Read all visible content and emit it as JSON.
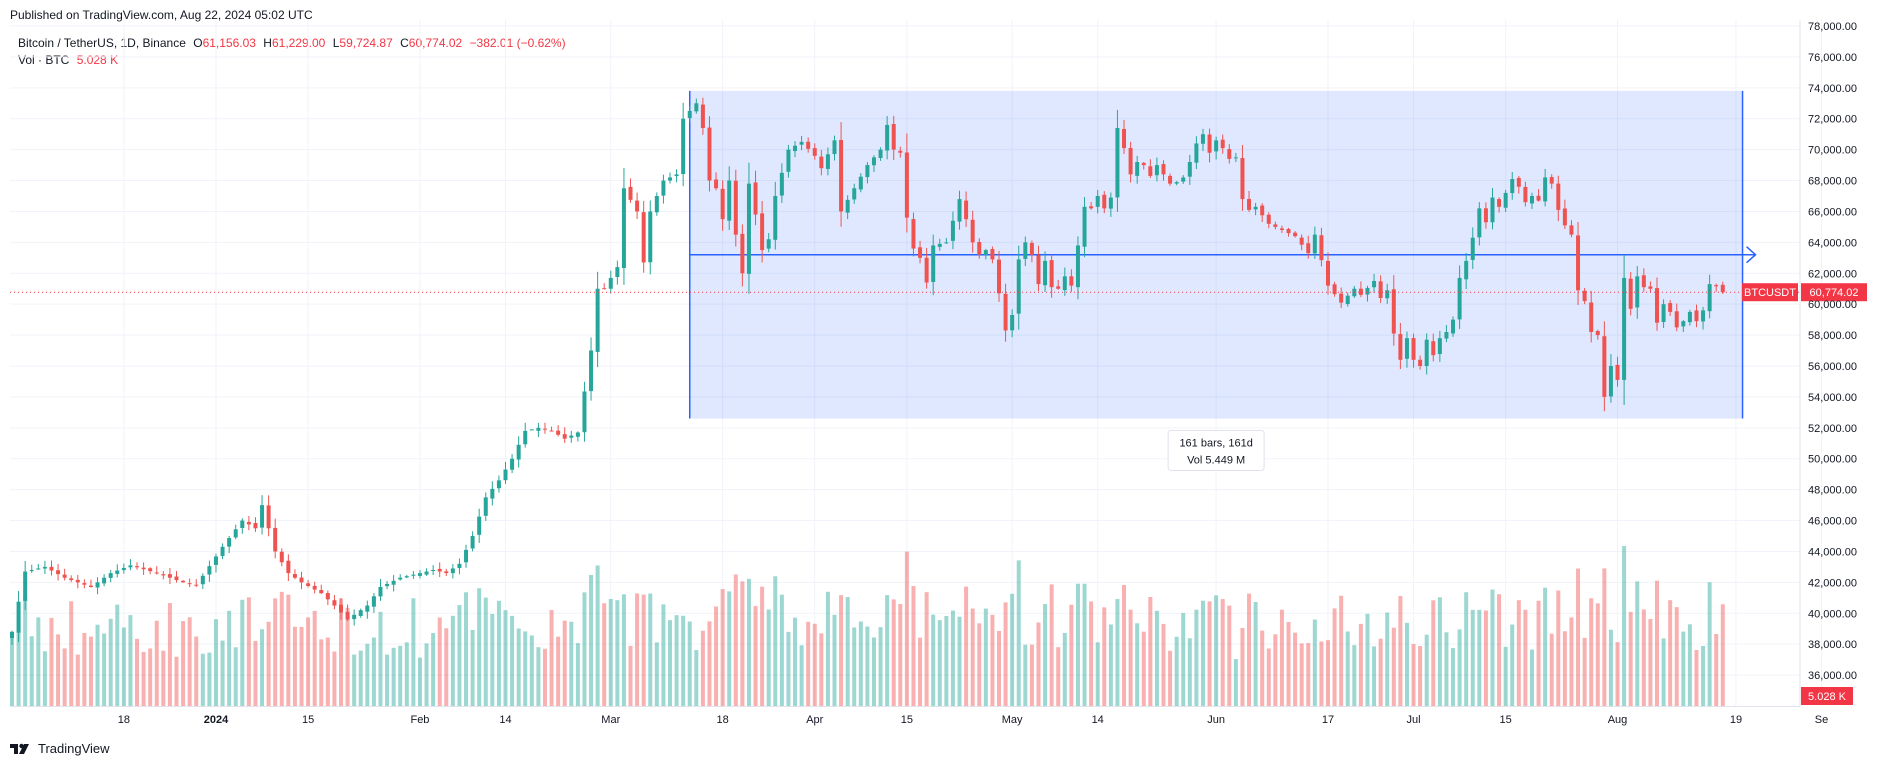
{
  "header": {
    "published": "Published on TradingView.com, Aug 22, 2024 05:02 UTC"
  },
  "legend": {
    "symbol": "Bitcoin / TetherUS, 1D, Binance",
    "open_label": "O",
    "open": "61,156.03",
    "high_label": "H",
    "high": "61,229.00",
    "low_label": "L",
    "low": "59,724.87",
    "close_label": "C",
    "close": "60,774.02",
    "change": "−382.01 (−0.62%)",
    "vol_label": "Vol · BTC",
    "vol_value": "5.028 K"
  },
  "footer": {
    "brand": "TradingView"
  },
  "colors": {
    "up": "#26a69a",
    "down": "#ef5350",
    "range": "#2962ff",
    "price_line": "#f23645"
  },
  "chart_data": {
    "type": "candlestick",
    "title": "Bitcoin / TetherUS, 1D, Binance",
    "ylim": [
      34000,
      78000
    ],
    "y_ticks": [
      "36,000.00",
      "38,000.00",
      "40,000.00",
      "42,000.00",
      "44,000.00",
      "46,000.00",
      "48,000.00",
      "50,000.00",
      "52,000.00",
      "54,000.00",
      "56,000.00",
      "58,000.00",
      "60,000.00",
      "62,000.00",
      "64,000.00",
      "66,000.00",
      "68,000.00",
      "70,000.00",
      "72,000.00",
      "74,000.00",
      "76,000.00",
      "78,000.00"
    ],
    "x_labels": [
      {
        "text": "18",
        "day": 17
      },
      {
        "text": "2024",
        "day": 31,
        "bold": true
      },
      {
        "text": "15",
        "day": 45
      },
      {
        "text": "Feb",
        "day": 62
      },
      {
        "text": "14",
        "day": 75
      },
      {
        "text": "Mar",
        "day": 91
      },
      {
        "text": "18",
        "day": 108
      },
      {
        "text": "Apr",
        "day": 122
      },
      {
        "text": "15",
        "day": 136
      },
      {
        "text": "May",
        "day": 152
      },
      {
        "text": "14",
        "day": 165
      },
      {
        "text": "Jun",
        "day": 183
      },
      {
        "text": "17",
        "day": 200
      },
      {
        "text": "Jul",
        "day": 213
      },
      {
        "text": "15",
        "day": 227
      },
      {
        "text": "Aug",
        "day": 244
      },
      {
        "text": "19",
        "day": 262
      },
      {
        "text": "Se",
        "day": 275
      }
    ],
    "last_price_label": "BTCUSDT",
    "last_price": "60,774.02",
    "last_price_value": 60774.02,
    "volume_label": "5.028 K",
    "volume_scale_max": 4500000,
    "measurement": {
      "start_day": 103,
      "end_day": 263,
      "top_price": 73800,
      "bottom_price": 52600,
      "arrow_price": 63200,
      "bars_text": "161 bars, 161d",
      "vol_text": "Vol 5.449 M"
    },
    "series": [
      {
        "name": "BTCUSDT",
        "anchors": [
          [
            0,
            38800
          ],
          [
            2,
            42700
          ],
          [
            5,
            43000
          ],
          [
            8,
            42300
          ],
          [
            12,
            41700
          ],
          [
            15,
            42600
          ],
          [
            18,
            43100
          ],
          [
            22,
            42600
          ],
          [
            26,
            42000
          ],
          [
            28,
            41800
          ],
          [
            32,
            44300
          ],
          [
            35,
            46000
          ],
          [
            37,
            45500
          ],
          [
            38,
            47000
          ],
          [
            40,
            44000
          ],
          [
            42,
            42600
          ],
          [
            44,
            42000
          ],
          [
            47,
            41300
          ],
          [
            49,
            40500
          ],
          [
            51,
            39600
          ],
          [
            52,
            39900
          ],
          [
            54,
            40500
          ],
          [
            56,
            41700
          ],
          [
            59,
            42300
          ],
          [
            62,
            42600
          ],
          [
            64,
            42800
          ],
          [
            66,
            42600
          ],
          [
            68,
            43200
          ],
          [
            70,
            45000
          ],
          [
            72,
            47500
          ],
          [
            74,
            48600
          ],
          [
            76,
            50000
          ],
          [
            78,
            51800
          ],
          [
            80,
            52000
          ],
          [
            82,
            51800
          ],
          [
            84,
            51300
          ],
          [
            86,
            51700
          ],
          [
            88,
            57000
          ],
          [
            89,
            61000
          ],
          [
            90,
            61000
          ],
          [
            92,
            62400
          ],
          [
            93,
            67500
          ],
          [
            95,
            66000
          ],
          [
            96,
            62700
          ],
          [
            97,
            66000
          ],
          [
            99,
            68000
          ],
          [
            101,
            68400
          ],
          [
            102,
            72000
          ],
          [
            104,
            73000
          ],
          [
            105,
            71400
          ],
          [
            106,
            68000
          ],
          [
            107,
            67500
          ],
          [
            108,
            65500
          ],
          [
            109,
            68000
          ],
          [
            110,
            64500
          ],
          [
            111,
            62000
          ],
          [
            112,
            67800
          ],
          [
            113,
            65800
          ],
          [
            114,
            63500
          ],
          [
            115,
            64200
          ],
          [
            116,
            67000
          ],
          [
            118,
            70000
          ],
          [
            120,
            70500
          ],
          [
            122,
            69600
          ],
          [
            123,
            68800
          ],
          [
            125,
            70600
          ],
          [
            126,
            66000
          ],
          [
            128,
            67500
          ],
          [
            130,
            69000
          ],
          [
            132,
            70000
          ],
          [
            133,
            71600
          ],
          [
            134,
            70000
          ],
          [
            135,
            69800
          ],
          [
            136,
            65600
          ],
          [
            137,
            63600
          ],
          [
            138,
            63000
          ],
          [
            139,
            61400
          ],
          [
            140,
            63800
          ],
          [
            142,
            64000
          ],
          [
            143,
            65400
          ],
          [
            144,
            66800
          ],
          [
            145,
            65500
          ],
          [
            146,
            64000
          ],
          [
            147,
            63200
          ],
          [
            148,
            63500
          ],
          [
            149,
            62900
          ],
          [
            150,
            60700
          ],
          [
            151,
            58300
          ],
          [
            152,
            59300
          ],
          [
            153,
            62900
          ],
          [
            154,
            64000
          ],
          [
            155,
            63200
          ],
          [
            156,
            61300
          ],
          [
            157,
            62800
          ],
          [
            158,
            61100
          ],
          [
            159,
            61000
          ],
          [
            160,
            61800
          ],
          [
            161,
            61200
          ],
          [
            162,
            63800
          ],
          [
            163,
            66300
          ],
          [
            164,
            66200
          ],
          [
            165,
            67000
          ],
          [
            166,
            66200
          ],
          [
            167,
            66900
          ],
          [
            168,
            71400
          ],
          [
            169,
            70100
          ],
          [
            170,
            68400
          ],
          [
            171,
            69200
          ],
          [
            172,
            69000
          ],
          [
            173,
            68300
          ],
          [
            174,
            69000
          ],
          [
            175,
            68400
          ],
          [
            176,
            67800
          ],
          [
            177,
            67900
          ],
          [
            178,
            68200
          ],
          [
            179,
            69200
          ],
          [
            180,
            70400
          ],
          [
            181,
            71000
          ],
          [
            182,
            69800
          ],
          [
            183,
            70600
          ],
          [
            184,
            70100
          ],
          [
            185,
            69400
          ],
          [
            186,
            69500
          ],
          [
            187,
            66800
          ],
          [
            188,
            66100
          ],
          [
            189,
            66300
          ],
          [
            191,
            65200
          ],
          [
            193,
            64800
          ],
          [
            195,
            64400
          ],
          [
            197,
            63300
          ],
          [
            198,
            64500
          ],
          [
            200,
            61200
          ],
          [
            202,
            60100
          ],
          [
            204,
            61000
          ],
          [
            205,
            60600
          ],
          [
            207,
            61500
          ],
          [
            208,
            60400
          ],
          [
            209,
            60900
          ],
          [
            210,
            58100
          ],
          [
            211,
            56400
          ],
          [
            212,
            57800
          ],
          [
            213,
            56400
          ],
          [
            214,
            56000
          ],
          [
            215,
            57700
          ],
          [
            216,
            56700
          ],
          [
            217,
            57800
          ],
          [
            218,
            58200
          ],
          [
            219,
            59000
          ],
          [
            220,
            61700
          ],
          [
            221,
            62800
          ],
          [
            222,
            64300
          ],
          [
            223,
            66200
          ],
          [
            224,
            65300
          ],
          [
            225,
            66900
          ],
          [
            226,
            66300
          ],
          [
            227,
            67200
          ],
          [
            228,
            68100
          ],
          [
            229,
            67600
          ],
          [
            230,
            66600
          ],
          [
            231,
            67000
          ],
          [
            232,
            66700
          ],
          [
            233,
            68200
          ],
          [
            234,
            67800
          ],
          [
            235,
            66100
          ],
          [
            236,
            65100
          ],
          [
            237,
            64500
          ],
          [
            238,
            60900
          ],
          [
            239,
            60200
          ],
          [
            240,
            58200
          ],
          [
            241,
            58000
          ],
          [
            242,
            54000
          ],
          [
            243,
            56000
          ],
          [
            244,
            55100
          ],
          [
            245,
            61700
          ],
          [
            246,
            59700
          ],
          [
            247,
            61800
          ],
          [
            248,
            61100
          ],
          [
            249,
            61000
          ],
          [
            250,
            58800
          ],
          [
            251,
            60000
          ],
          [
            252,
            59500
          ],
          [
            253,
            58500
          ],
          [
            254,
            58900
          ],
          [
            255,
            59500
          ],
          [
            256,
            58900
          ],
          [
            257,
            59600
          ],
          [
            258,
            61300
          ],
          [
            259,
            61156
          ],
          [
            260,
            60774
          ]
        ]
      }
    ]
  }
}
